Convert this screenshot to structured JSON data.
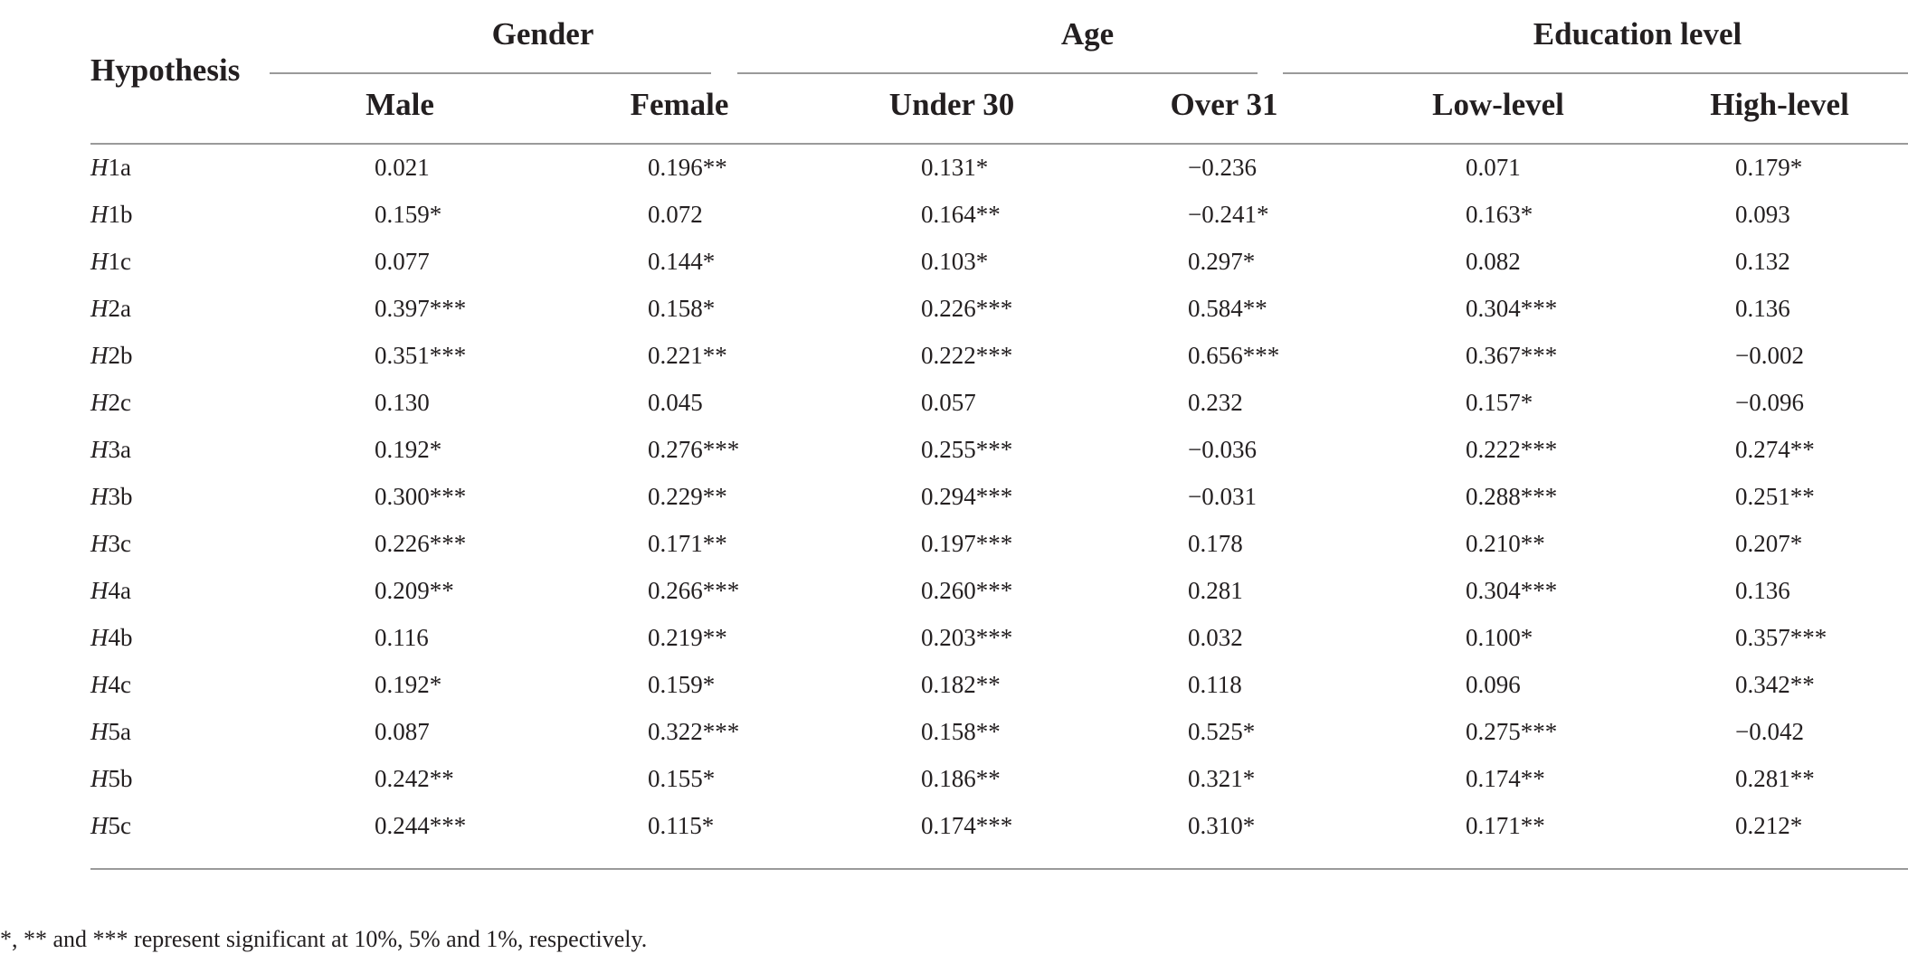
{
  "header": {
    "hypothesis_label": "Hypothesis",
    "groups": [
      {
        "title": "Gender",
        "columns": [
          "Male",
          "Female"
        ]
      },
      {
        "title": "Age",
        "columns": [
          "Under 30",
          "Over 31"
        ]
      },
      {
        "title": "Education level",
        "columns": [
          "Low-level",
          "High-level"
        ]
      }
    ]
  },
  "rows": [
    {
      "h": "H",
      "id": "1a",
      "values": [
        "0.021",
        "0.196**",
        "0.131*",
        "−0.236",
        "0.071",
        "0.179*"
      ]
    },
    {
      "h": "H",
      "id": "1b",
      "values": [
        "0.159*",
        "0.072",
        "0.164**",
        "−0.241*",
        "0.163*",
        "0.093"
      ]
    },
    {
      "h": "H",
      "id": "1c",
      "values": [
        "0.077",
        "0.144*",
        "0.103*",
        "0.297*",
        "0.082",
        "0.132"
      ]
    },
    {
      "h": "H",
      "id": "2a",
      "values": [
        "0.397***",
        "0.158*",
        "0.226***",
        "0.584**",
        "0.304***",
        "0.136"
      ]
    },
    {
      "h": "H",
      "id": "2b",
      "values": [
        "0.351***",
        "0.221**",
        "0.222***",
        "0.656***",
        "0.367***",
        "−0.002"
      ]
    },
    {
      "h": "H",
      "id": "2c",
      "values": [
        "0.130",
        "0.045",
        "0.057",
        "0.232",
        "0.157*",
        "−0.096"
      ]
    },
    {
      "h": "H",
      "id": "3a",
      "values": [
        "0.192*",
        "0.276***",
        "0.255***",
        "−0.036",
        "0.222***",
        "0.274**"
      ]
    },
    {
      "h": "H",
      "id": "3b",
      "values": [
        "0.300***",
        "0.229**",
        "0.294***",
        "−0.031",
        "0.288***",
        "0.251**"
      ]
    },
    {
      "h": "H",
      "id": "3c",
      "values": [
        "0.226***",
        "0.171**",
        "0.197***",
        "0.178",
        "0.210**",
        "0.207*"
      ]
    },
    {
      "h": "H",
      "id": "4a",
      "values": [
        "0.209**",
        "0.266***",
        "0.260***",
        "0.281",
        "0.304***",
        "0.136"
      ]
    },
    {
      "h": "H",
      "id": "4b",
      "values": [
        "0.116",
        "0.219**",
        "0.203***",
        "0.032",
        "0.100*",
        "0.357***"
      ]
    },
    {
      "h": "H",
      "id": "4c",
      "values": [
        "0.192*",
        "0.159*",
        "0.182**",
        "0.118",
        "0.096",
        "0.342**"
      ]
    },
    {
      "h": "H",
      "id": "5a",
      "values": [
        "0.087",
        "0.322***",
        "0.158**",
        "0.525*",
        "0.275***",
        "−0.042"
      ]
    },
    {
      "h": "H",
      "id": "5b",
      "values": [
        "0.242**",
        "0.155*",
        "0.186**",
        "0.321*",
        "0.174**",
        "0.281**"
      ]
    },
    {
      "h": "H",
      "id": "5c",
      "values": [
        "0.244***",
        "0.115*",
        "0.174***",
        "0.310*",
        "0.171**",
        "0.212*"
      ]
    }
  ],
  "footnote": "*, ** and *** represent significant at 10%, 5% and 1%, respectively."
}
